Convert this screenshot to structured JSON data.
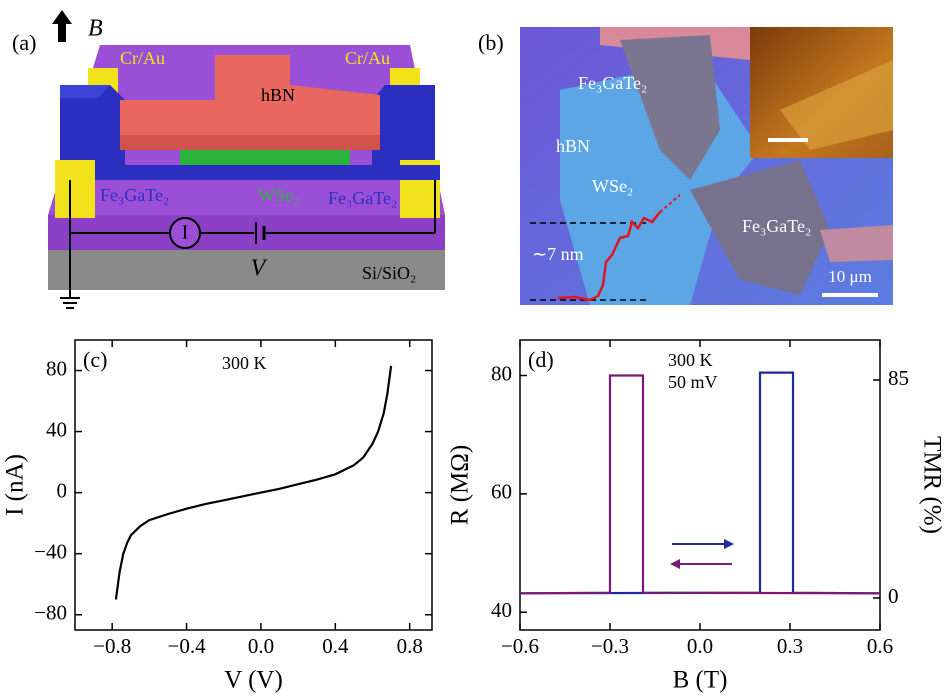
{
  "schematic": {
    "label": "(a)",
    "field": "B",
    "electrode_left": "Cr/Au",
    "electrode_right": "Cr/Au",
    "top_layer": "hBN",
    "magnet_left": "Fe₃GaTe₂",
    "barrier": "WSe₂",
    "magnet_right": "Fe₃GaTe₂",
    "meter": "I",
    "source": "V",
    "substrate": "Si/SiO₂"
  },
  "micrograph": {
    "label": "(b)",
    "flake_top": "Fe₃GaTe₂",
    "hbn": "hBN",
    "wse2": "WSe₂",
    "flake_bottom": "Fe₃GaTe₂",
    "thickness": "∼7 nm",
    "scale": "10 μm"
  },
  "chart_data": [
    {
      "type": "line",
      "label": "(c)",
      "annotations": [
        "300 K"
      ],
      "xlabel": "V (V)",
      "ylabel": "I (nA)",
      "color": "#000000",
      "x": [
        -0.78,
        -0.76,
        -0.74,
        -0.72,
        -0.7,
        -0.65,
        -0.6,
        -0.5,
        -0.4,
        -0.3,
        -0.2,
        -0.1,
        0,
        0.1,
        0.2,
        0.3,
        0.4,
        0.5,
        0.55,
        0.6,
        0.63,
        0.66,
        0.68,
        0.7
      ],
      "values": [
        -70,
        -52,
        -40,
        -33,
        -28,
        -22,
        -18,
        -14,
        -10.5,
        -7.5,
        -5,
        -2.5,
        0,
        2.5,
        5.5,
        8.5,
        12,
        18,
        23,
        32,
        40,
        52,
        65,
        83
      ],
      "xlim": [
        -1,
        0.92
      ],
      "ylim": [
        -90,
        100
      ],
      "xticks": [
        {
          "value": -0.8,
          "label": "−0.8"
        },
        {
          "value": -0.4,
          "label": "−0.4"
        },
        {
          "value": 0,
          "label": "0.0"
        },
        0.4,
        0.8
      ],
      "yticks": [
        {
          "value": -80,
          "label": "−80"
        },
        {
          "value": -40,
          "label": "−40"
        },
        0,
        40,
        80
      ]
    },
    {
      "type": "line",
      "label": "(d)",
      "annotations": [
        "300 K",
        "50 mV"
      ],
      "xlabel": "B (T)",
      "ylabel": "R (MΩ)",
      "y2label": "TMR (%)",
      "series": [
        {
          "color": "#1c2a9e",
          "x": [
            -0.6,
            0.2,
            0.2,
            0.31,
            0.31,
            0.6
          ],
          "values": [
            43.2,
            43.3,
            80.5,
            80.5,
            43.3,
            43.2
          ]
        },
        {
          "color": "#7a1a78",
          "x": [
            0.6,
            -0.19,
            -0.19,
            -0.3,
            -0.3,
            -0.6
          ],
          "values": [
            43.2,
            43.3,
            80,
            80,
            43.3,
            43.2
          ]
        }
      ],
      "xlim": [
        -0.6,
        0.6
      ],
      "ylim": [
        37,
        86
      ],
      "y2lim": [
        -12.5,
        100.6
      ],
      "xticks": [
        {
          "value": -0.6,
          "label": "−0.6"
        },
        {
          "value": -0.3,
          "label": "−0.3"
        },
        {
          "value": 0,
          "label": "0.0"
        },
        0.3,
        0.6
      ],
      "yticks": [
        40,
        60,
        80
      ],
      "y2ticks": [
        0,
        85
      ]
    }
  ]
}
